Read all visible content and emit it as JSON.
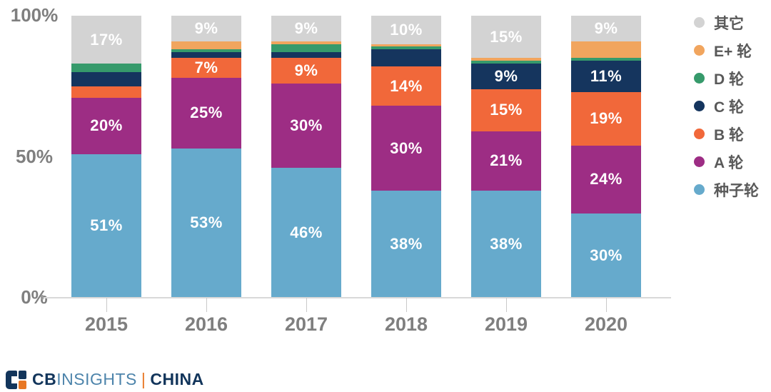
{
  "chart_data": {
    "type": "bar",
    "stacked": true,
    "percent": true,
    "title": "",
    "xlabel": "",
    "ylabel": "",
    "ylim": [
      0,
      100
    ],
    "grid": false,
    "categories": [
      "2015",
      "2016",
      "2017",
      "2018",
      "2019",
      "2020"
    ],
    "yticks": [
      {
        "label": "0%",
        "value": 0
      },
      {
        "label": "50%",
        "value": 50
      },
      {
        "label": "100%",
        "value": 100
      }
    ],
    "series": [
      {
        "name": "种子轮",
        "color": "#66aacc",
        "values": [
          51,
          53,
          46,
          38,
          38,
          30
        ],
        "labels": [
          "51%",
          "53%",
          "46%",
          "38%",
          "38%",
          "30%"
        ]
      },
      {
        "name": "A 轮",
        "color": "#9d2d84",
        "values": [
          20,
          25,
          30,
          30,
          21,
          24
        ],
        "labels": [
          "20%",
          "25%",
          "30%",
          "30%",
          "21%",
          "24%"
        ]
      },
      {
        "name": "B 轮",
        "color": "#f1683a",
        "values": [
          4,
          7,
          9,
          14,
          15,
          19
        ],
        "labels": [
          null,
          "7%",
          "9%",
          "14%",
          "15%",
          "19%"
        ]
      },
      {
        "name": "C 轮",
        "color": "#15355e",
        "values": [
          5,
          2,
          2,
          6,
          9,
          11
        ],
        "labels": [
          null,
          null,
          null,
          null,
          "9%",
          "11%"
        ]
      },
      {
        "name": "D 轮",
        "color": "#369a6b",
        "values": [
          3,
          1,
          3,
          1,
          1,
          1
        ],
        "labels": [
          null,
          null,
          null,
          null,
          null,
          null
        ]
      },
      {
        "name": "E+ 轮",
        "color": "#f1a55e",
        "values": [
          0,
          3,
          1,
          1,
          1,
          6
        ],
        "labels": [
          null,
          null,
          null,
          null,
          null,
          null
        ]
      },
      {
        "name": "其它",
        "color": "#d3d3d3",
        "values": [
          17,
          9,
          9,
          10,
          15,
          9
        ],
        "labels": [
          "17%",
          "9%",
          "9%",
          "10%",
          "15%",
          "9%"
        ]
      }
    ],
    "legend": {
      "position": "right",
      "items": [
        {
          "label": "其它",
          "color": "#d3d3d3"
        },
        {
          "label": "E+ 轮",
          "color": "#f1a55e"
        },
        {
          "label": "D 轮",
          "color": "#369a6b"
        },
        {
          "label": "C 轮",
          "color": "#15355e"
        },
        {
          "label": "B 轮",
          "color": "#f1683a"
        },
        {
          "label": "A 轮",
          "color": "#9d2d84"
        },
        {
          "label": "种子轮",
          "color": "#66aacc"
        }
      ]
    }
  },
  "footer": {
    "brand_bold": "CB",
    "brand_rest": "INSIGHTS",
    "separator": "|",
    "region": "CHINA"
  },
  "colors": {
    "background": "#ffffff",
    "axis_text": "#7f7f7f",
    "bar_label": "#ffffff",
    "legend_text": "#595959",
    "baseline": "#d9d9d9",
    "brand_navy": "#12355b",
    "brand_blue": "#4d84ab",
    "brand_orange": "#e87724"
  }
}
